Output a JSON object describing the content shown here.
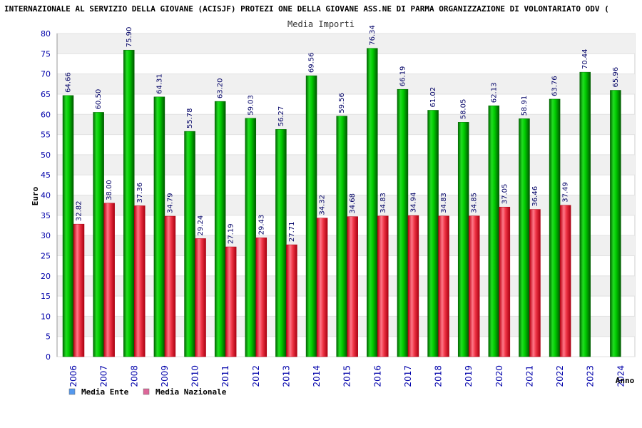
{
  "chart_data": {
    "type": "bar",
    "title": "INTERNAZIONALE AL SERVIZIO DELLA GIOVANE (ACISJF) PROTEZI ONE DELLA GIOVANE ASS.NE DI PARMA ORGANIZZAZIONE DI VOLONTARIATO ODV (",
    "subtitle": "Media Importi",
    "xlabel": "Anno",
    "ylabel": "Euro",
    "ylim": [
      0,
      80
    ],
    "yticks": [
      0,
      5,
      10,
      15,
      20,
      25,
      30,
      35,
      40,
      45,
      50,
      55,
      60,
      65,
      70,
      75,
      80
    ],
    "grid": true,
    "legend_position": "bottom-left",
    "categories": [
      "2006",
      "2007",
      "2008",
      "2009",
      "2010",
      "2011",
      "2012",
      "2013",
      "2014",
      "2015",
      "2016",
      "2017",
      "2018",
      "2019",
      "2020",
      "2021",
      "2022",
      "2023",
      "2024"
    ],
    "series": [
      {
        "name": "Media Ente",
        "color": "#00aa00",
        "legend_color": "#5599ee",
        "values": [
          64.66,
          60.5,
          75.9,
          64.31,
          55.78,
          63.2,
          59.03,
          56.27,
          69.56,
          59.56,
          76.34,
          66.19,
          61.02,
          58.05,
          62.13,
          58.91,
          63.76,
          70.44,
          65.96
        ],
        "labels": [
          "64.66",
          "60.50",
          "75.90",
          "64.31",
          "55.78",
          "63.20",
          "59.03",
          "56.27",
          "69.56",
          "59.56",
          "76.34",
          "66.19",
          "61.02",
          "58.05",
          "62.13",
          "58.91",
          "63.76",
          "70.44",
          "65.96"
        ]
      },
      {
        "name": "Media Nazionale",
        "color": "#dd2222",
        "legend_color": "#dd6699",
        "values": [
          32.82,
          38.0,
          37.36,
          34.79,
          29.24,
          27.19,
          29.43,
          27.71,
          34.32,
          34.68,
          34.83,
          34.94,
          34.83,
          34.85,
          37.05,
          36.46,
          37.49,
          null,
          null
        ],
        "labels": [
          "32.82",
          "38.00",
          "37.36",
          "34.79",
          "29.24",
          "27.19",
          "29.43",
          "27.71",
          "34.32",
          "34.68",
          "34.83",
          "34.94",
          "34.83",
          "34.85",
          "37.05",
          "36.46",
          "37.49",
          null,
          null
        ]
      }
    ]
  }
}
